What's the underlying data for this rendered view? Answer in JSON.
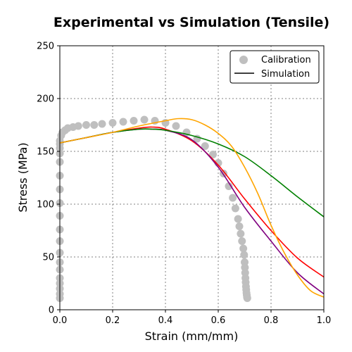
{
  "chart_data": {
    "type": "scatter",
    "title": "Experimental vs Simulation (Tensile)",
    "xlabel": "Strain (mm/mm)",
    "ylabel": "Stress (MPa)",
    "xlim": [
      0.0,
      1.0
    ],
    "ylim": [
      0,
      250
    ],
    "xticks": [
      "0.0",
      "0.2",
      "0.4",
      "0.6",
      "0.8",
      "1.0"
    ],
    "yticks": [
      "0",
      "50",
      "100",
      "150",
      "200",
      "250"
    ],
    "grid": true,
    "legend": {
      "position": "top-right",
      "entries": [
        {
          "label": "Calibration",
          "marker": "circle",
          "color": "#bfbfbf"
        },
        {
          "label": "Simulation",
          "marker": "line",
          "color": "#000000"
        }
      ]
    },
    "calibration": {
      "color": "#bfbfbf",
      "x": [
        0.0,
        0.0,
        0.0,
        0.0,
        0.0,
        0.0,
        0.0,
        0.0,
        0.0,
        0.0,
        0.0,
        0.0,
        0.0,
        0.0,
        0.0,
        0.0,
        0.0,
        0.0,
        0.0,
        0.005,
        0.01,
        0.02,
        0.03,
        0.05,
        0.07,
        0.1,
        0.13,
        0.16,
        0.2,
        0.24,
        0.28,
        0.32,
        0.36,
        0.4,
        0.44,
        0.48,
        0.52,
        0.55,
        0.58,
        0.6,
        0.62,
        0.64,
        0.655,
        0.665,
        0.675,
        0.68,
        0.685,
        0.69,
        0.695,
        0.698,
        0.7,
        0.701,
        0.702,
        0.703,
        0.704,
        0.705,
        0.706,
        0.707,
        0.708,
        0.709,
        0.71
      ],
      "y": [
        11,
        15,
        20,
        25,
        30,
        38,
        45,
        54,
        65,
        76,
        89,
        101,
        114,
        127,
        140,
        148,
        153,
        157,
        160,
        165,
        168,
        170,
        172,
        173,
        174,
        175,
        175,
        176,
        177,
        178,
        179,
        180,
        179,
        177,
        174,
        168,
        162,
        155,
        147,
        139,
        129,
        117,
        106,
        96,
        86,
        79,
        72,
        65,
        58,
        52,
        45,
        40,
        35,
        30,
        26,
        22,
        19,
        16,
        14,
        12,
        11
      ]
    },
    "series": [
      {
        "name": "Simulation",
        "color": "#ff0000",
        "x": [
          0.0,
          0.1,
          0.2,
          0.3,
          0.35,
          0.4,
          0.5,
          0.6,
          0.7,
          0.8,
          0.9,
          1.0
        ],
        "y": [
          158,
          163,
          168,
          172,
          173,
          171,
          160,
          137,
          105,
          75,
          49,
          31
        ]
      },
      {
        "name": "Simulation",
        "color": "#800080",
        "x": [
          0.0,
          0.1,
          0.2,
          0.3,
          0.35,
          0.4,
          0.5,
          0.6,
          0.7,
          0.8,
          0.9,
          1.0
        ],
        "y": [
          158,
          163,
          168,
          171,
          171,
          170,
          161,
          135,
          97,
          65,
          35,
          15
        ]
      },
      {
        "name": "Simulation",
        "color": "#008000",
        "x": [
          0.0,
          0.1,
          0.2,
          0.3,
          0.35,
          0.4,
          0.5,
          0.6,
          0.7,
          0.8,
          0.9,
          1.0
        ],
        "y": [
          158,
          163,
          168,
          171,
          171,
          170,
          165,
          157,
          145,
          127,
          107,
          88
        ]
      },
      {
        "name": "Simulation",
        "color": "#ffa500",
        "x": [
          0.0,
          0.1,
          0.2,
          0.3,
          0.4,
          0.45,
          0.5,
          0.55,
          0.6,
          0.65,
          0.7,
          0.75,
          0.8,
          0.85,
          0.9,
          0.95,
          1.0
        ],
        "y": [
          158,
          163,
          168,
          174,
          179,
          181,
          180,
          175,
          167,
          155,
          135,
          110,
          80,
          54,
          33,
          18,
          12
        ]
      }
    ]
  }
}
